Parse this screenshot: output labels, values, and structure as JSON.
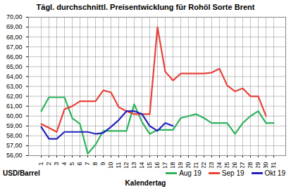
{
  "chart_data": {
    "type": "line",
    "title": "Tägl. durchschnittl. Preisentwicklung für Rohöl Sorte Brent",
    "x_label": "Kalendertag",
    "y_label": "USD/Barrel",
    "categories": [
      "1",
      "2",
      "3",
      "4",
      "5",
      "6",
      "7",
      "8",
      "9",
      "10",
      "11",
      "12",
      "13",
      "14",
      "15",
      "16",
      "17",
      "18",
      "19",
      "20",
      "21",
      "22",
      "23",
      "24",
      "25",
      "26",
      "27",
      "28",
      "29",
      "30",
      "31"
    ],
    "series": [
      {
        "name": "Aug 19",
        "color": "#2eb35c",
        "values": [
          60.5,
          61.9,
          61.9,
          61.9,
          59.8,
          59.2,
          56.2,
          57.1,
          58.5,
          58.5,
          58.5,
          58.5,
          61.2,
          59.4,
          58.2,
          58.6,
          58.6,
          58.6,
          59.8,
          60.0,
          60.2,
          59.8,
          59.3,
          59.3,
          59.3,
          58.2,
          59.3,
          60.0,
          60.5,
          59.3,
          59.3
        ]
      },
      {
        "name": "Sep 19",
        "color": "#e8413a",
        "values": [
          59.2,
          58.8,
          58.4,
          60.7,
          61.0,
          61.5,
          61.5,
          61.5,
          62.6,
          62.4,
          60.9,
          60.5,
          60.2,
          60.2,
          60.2,
          69.0,
          64.5,
          63.6,
          64.3,
          64.3,
          64.3,
          64.3,
          64.4,
          64.8,
          63.1,
          62.5,
          62.8,
          62.0,
          62.0,
          60.0,
          null
        ]
      },
      {
        "name": "Okt 19",
        "color": "#2222c0",
        "values": [
          58.9,
          57.7,
          57.7,
          58.4,
          58.4,
          58.4,
          58.4,
          58.2,
          58.3,
          58.9,
          59.6,
          60.5,
          60.5,
          60.2,
          59.0,
          58.5,
          59.3,
          59.0,
          null,
          null,
          null,
          null,
          null,
          null,
          null,
          null,
          null,
          null,
          null,
          null,
          null
        ]
      }
    ],
    "ylim": [
      56,
      70
    ],
    "yticks": [
      {
        "value": 56,
        "label": "56,00"
      },
      {
        "value": 57,
        "label": "57,00"
      },
      {
        "value": 58,
        "label": "58,00"
      },
      {
        "value": 59,
        "label": "59,00"
      },
      {
        "value": 60,
        "label": "60,00"
      },
      {
        "value": 61,
        "label": "61,00"
      },
      {
        "value": 62,
        "label": "62,00"
      },
      {
        "value": 63,
        "label": "63,00"
      },
      {
        "value": 64,
        "label": "64,00"
      },
      {
        "value": 65,
        "label": "65,00"
      },
      {
        "value": 66,
        "label": "66,00"
      },
      {
        "value": 67,
        "label": "67,00"
      },
      {
        "value": 68,
        "label": "68,00"
      },
      {
        "value": 69,
        "label": "69,00"
      },
      {
        "value": 70,
        "label": "70,00"
      }
    ],
    "grid": true,
    "legend": "bottom right"
  }
}
